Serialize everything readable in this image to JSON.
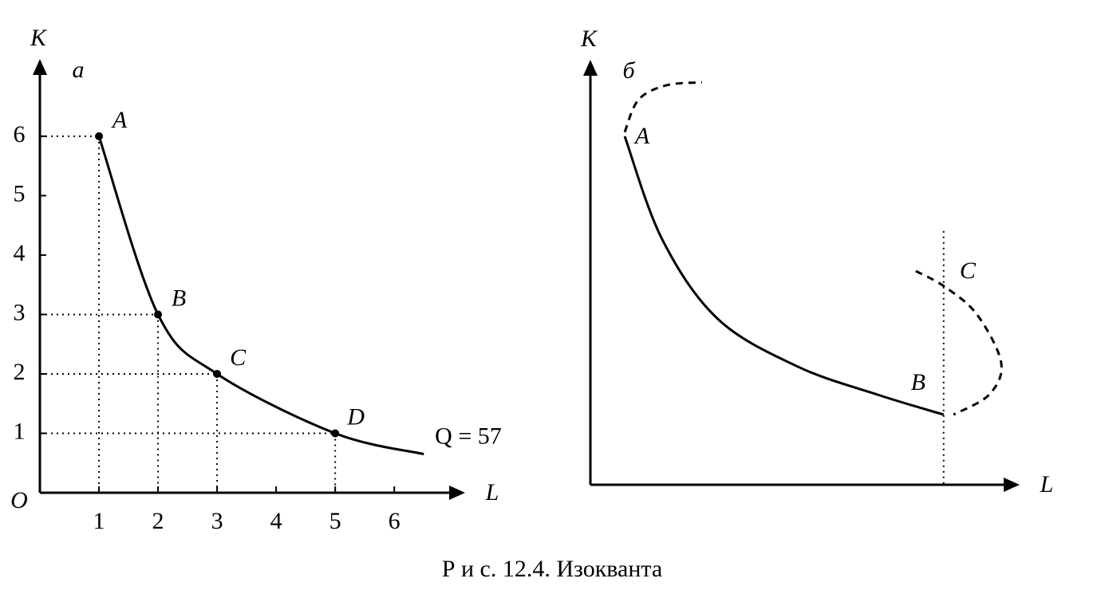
{
  "chart_data": [
    {
      "type": "line",
      "panel_label": "а",
      "xlabel": "L",
      "ylabel": "K",
      "origin_label": "O",
      "xlim": [
        0,
        7.2
      ],
      "ylim": [
        0,
        7.3
      ],
      "xticks": [
        1,
        2,
        3,
        4,
        5,
        6
      ],
      "yticks": [
        1,
        2,
        3,
        4,
        5,
        6
      ],
      "guides": true,
      "curve_label": "Q = 57",
      "series": [
        {
          "name": "Q = 57",
          "color": "#000000",
          "dashed": false,
          "markers": true,
          "x": [
            1,
            2,
            3,
            5,
            6.5
          ],
          "values": [
            6,
            3,
            2,
            1,
            0.65
          ],
          "point_labels": [
            "A",
            "B",
            "C",
            "D",
            null
          ]
        }
      ]
    },
    {
      "type": "line",
      "panel_label": "б",
      "xlabel": "L",
      "ylabel": "K",
      "xlim": [
        0,
        10
      ],
      "ylim": [
        0,
        10
      ],
      "guide_x": 8.23,
      "guide_top": 5.97,
      "series": [
        {
          "color": "#000000",
          "dashed": true,
          "markers": false,
          "x": [
            0.8,
            1.12,
            1.77,
            2.6
          ],
          "values": [
            8.3,
            9.06,
            9.4,
            9.47
          ],
          "point_labels": [
            null,
            null,
            null,
            null
          ]
        },
        {
          "color": "#000000",
          "dashed": false,
          "markers": false,
          "x": [
            0.8,
            1.67,
            2.97,
            4.83,
            6.69,
            8.23
          ],
          "values": [
            8.2,
            5.78,
            3.9,
            2.78,
            2.12,
            1.65
          ],
          "point_labels": [
            "A",
            null,
            null,
            null,
            null,
            "B"
          ]
        },
        {
          "color": "#000000",
          "dashed": true,
          "markers": false,
          "x": [
            7.58,
            8.27,
            9.01,
            9.57,
            9.29,
            8.46
          ],
          "values": [
            5.03,
            4.65,
            4.0,
            2.87,
            2.12,
            1.65
          ],
          "point_labels": [
            null,
            "C",
            null,
            null,
            null,
            null
          ]
        }
      ]
    }
  ],
  "caption": "Р и с. 12.4. Изокванта"
}
